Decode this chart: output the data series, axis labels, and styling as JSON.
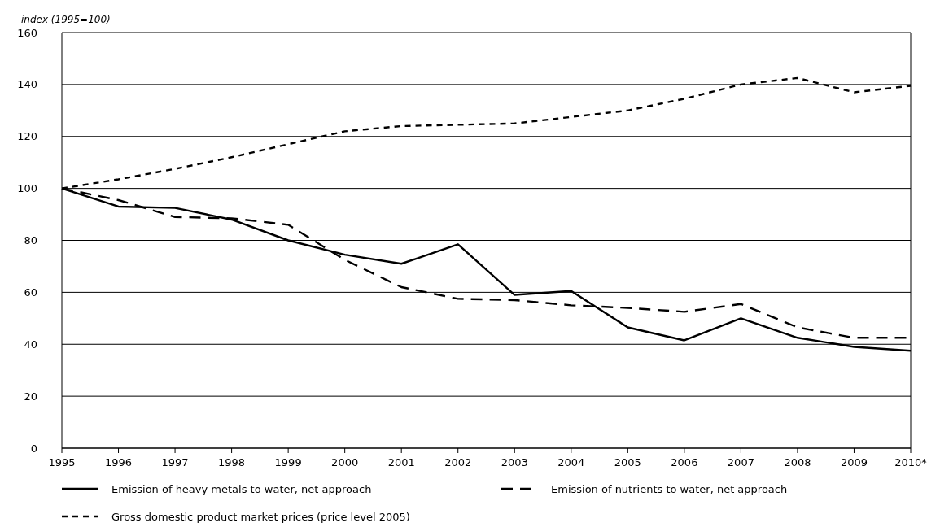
{
  "chart_data": {
    "type": "line",
    "ylabel": "index (1995=100)",
    "categories": [
      "1995",
      "1996",
      "1997",
      "1998",
      "1999",
      "2000",
      "2001",
      "2002",
      "2003",
      "2004",
      "2005",
      "2006",
      "2007",
      "2008",
      "2009",
      "2010*"
    ],
    "series": [
      {
        "name": "Emission of heavy metals to water, net approach",
        "color": "#000000",
        "line_style": "solid",
        "values": [
          100,
          93,
          92.5,
          88,
          80,
          74.5,
          71,
          78.5,
          59,
          60.5,
          46.5,
          41.5,
          50,
          42.5,
          39,
          37.5
        ]
      },
      {
        "name": "Emission of nutrients to water, net approach",
        "color": "#000000",
        "line_style": "dashed",
        "values": [
          100,
          95.5,
          89,
          88.5,
          86,
          72.5,
          62,
          57.5,
          57,
          55,
          54,
          52.5,
          55.5,
          46.5,
          42.5,
          42.5
        ]
      },
      {
        "name": "Gross domestic product market prices (price level 2005)",
        "color": "#000000",
        "line_style": "dotted",
        "values": [
          100,
          103.5,
          107.5,
          112,
          117,
          122,
          124,
          124.5,
          125,
          127.5,
          130,
          134.5,
          140,
          142.5,
          137,
          139.5
        ]
      }
    ],
    "ylim": [
      0,
      160
    ],
    "yticks": [
      0,
      20,
      40,
      60,
      80,
      100,
      120,
      140,
      160
    ],
    "grid": "y",
    "legend": "bottom",
    "marker": "none"
  }
}
